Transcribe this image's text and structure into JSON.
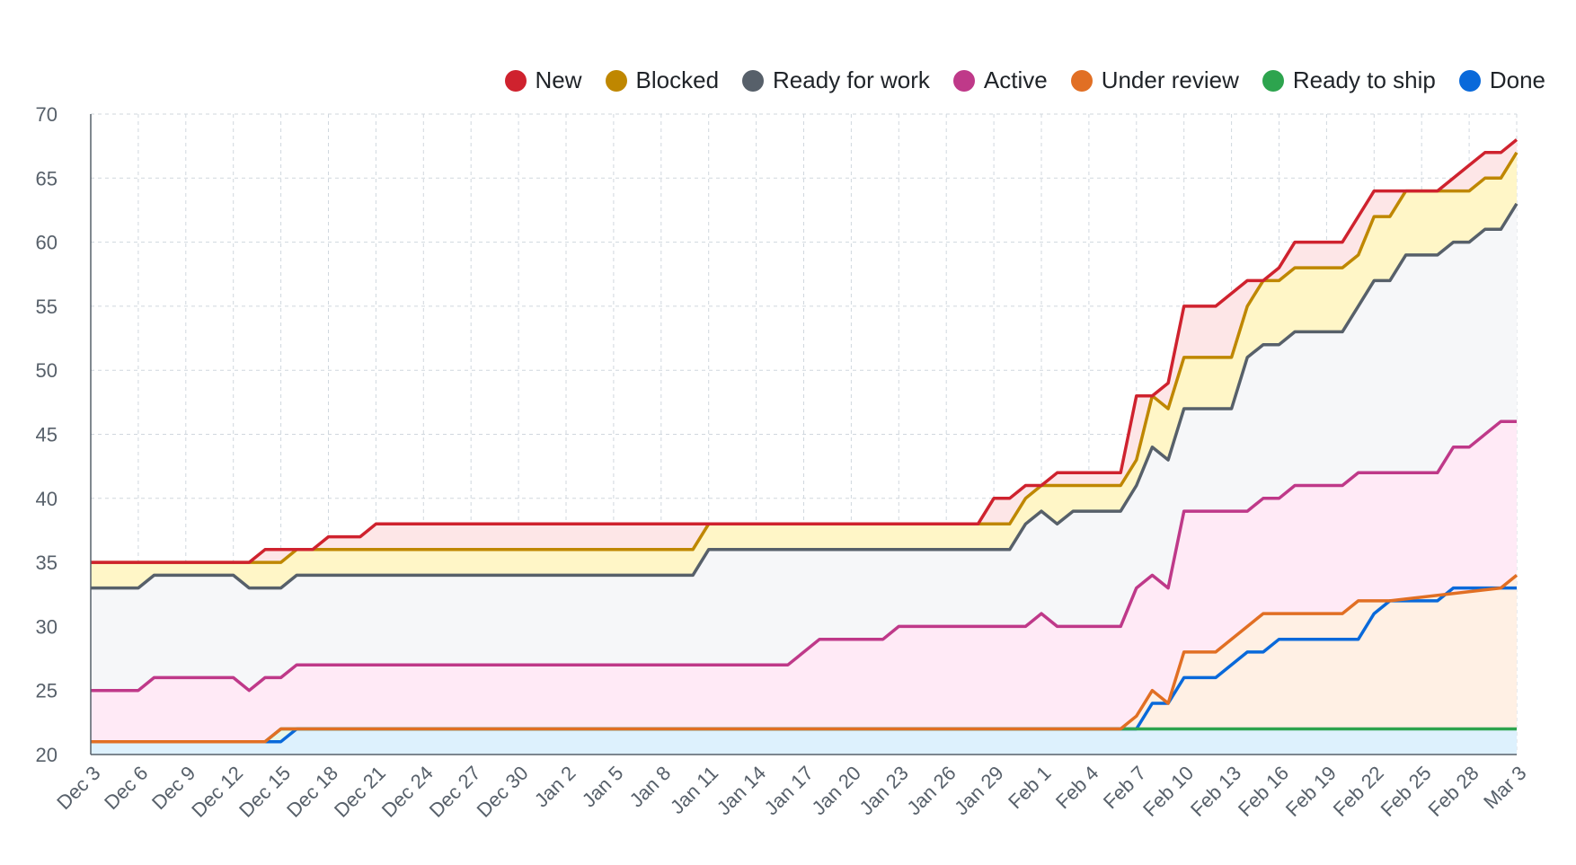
{
  "chart_data": {
    "type": "area",
    "title": "",
    "xlabel": "",
    "ylabel": "",
    "ylim": [
      20,
      70
    ],
    "yticks": [
      20,
      25,
      30,
      35,
      40,
      45,
      50,
      55,
      60,
      65,
      70
    ],
    "grid": true,
    "legend_position": "top-right",
    "x_start": "Dec 3",
    "x_end": "Mar 3",
    "x_tick_labels": [
      "Dec 3",
      "Dec 6",
      "Dec 9",
      "Dec 12",
      "Dec 15",
      "Dec 18",
      "Dec 21",
      "Dec 24",
      "Dec 27",
      "Dec 30",
      "Jan 2",
      "Jan 5",
      "Jan 8",
      "Jan 11",
      "Jan 14",
      "Jan 17",
      "Jan 20",
      "Jan 23",
      "Jan 26",
      "Jan 29",
      "Feb 1",
      "Feb 4",
      "Feb 7",
      "Feb 10",
      "Feb 13",
      "Feb 16",
      "Feb 19",
      "Feb 22",
      "Feb 25",
      "Feb 28",
      "Mar 3"
    ],
    "series": [
      {
        "name": "New",
        "color": "#cf222e",
        "fill": "#fde6e7",
        "points": [
          [
            "Dec 3",
            35
          ],
          [
            "Dec 13",
            35
          ],
          [
            "Dec 14",
            36
          ],
          [
            "Dec 16",
            36
          ],
          [
            "Dec 17",
            36
          ],
          [
            "Dec 18",
            37
          ],
          [
            "Dec 20",
            37
          ],
          [
            "Dec 21",
            38
          ],
          [
            "Jan 28",
            38
          ],
          [
            "Jan 29",
            40
          ],
          [
            "Jan 30",
            40
          ],
          [
            "Jan 31",
            41
          ],
          [
            "Feb 1",
            41
          ],
          [
            "Feb 2",
            42
          ],
          [
            "Feb 6",
            42
          ],
          [
            "Feb 7",
            48
          ],
          [
            "Feb 8",
            48
          ],
          [
            "Feb 9",
            49
          ],
          [
            "Feb 10",
            55
          ],
          [
            "Feb 12",
            55
          ],
          [
            "Feb 14",
            57
          ],
          [
            "Feb 15",
            57
          ],
          [
            "Feb 16",
            58
          ],
          [
            "Feb 17",
            60
          ],
          [
            "Feb 20",
            60
          ],
          [
            "Feb 22",
            64
          ],
          [
            "Feb 24",
            64
          ],
          [
            "Feb 26",
            64
          ],
          [
            "Feb 28",
            66
          ],
          [
            "Mar 1",
            67
          ],
          [
            "Mar 2",
            67
          ],
          [
            "Mar 3",
            68
          ]
        ]
      },
      {
        "name": "Blocked",
        "color": "#bf8700",
        "fill": "#fff6c7",
        "points": [
          [
            "Dec 3",
            35
          ],
          [
            "Dec 15",
            35
          ],
          [
            "Dec 16",
            36
          ],
          [
            "Jan 10",
            36
          ],
          [
            "Jan 11",
            38
          ],
          [
            "Jan 29",
            38
          ],
          [
            "Jan 30",
            38
          ],
          [
            "Jan 31",
            40
          ],
          [
            "Feb 1",
            41
          ],
          [
            "Feb 6",
            41
          ],
          [
            "Feb 7",
            43
          ],
          [
            "Feb 8",
            48
          ],
          [
            "Feb 9",
            47
          ],
          [
            "Feb 10",
            51
          ],
          [
            "Feb 13",
            51
          ],
          [
            "Feb 14",
            55
          ],
          [
            "Feb 15",
            57
          ],
          [
            "Feb 16",
            57
          ],
          [
            "Feb 17",
            58
          ],
          [
            "Feb 20",
            58
          ],
          [
            "Feb 21",
            59
          ],
          [
            "Feb 22",
            62
          ],
          [
            "Feb 23",
            62
          ],
          [
            "Feb 24",
            64
          ],
          [
            "Feb 27",
            64
          ],
          [
            "Feb 28",
            64
          ],
          [
            "Mar 1",
            65
          ],
          [
            "Mar 2",
            65
          ],
          [
            "Mar 3",
            67
          ]
        ]
      },
      {
        "name": "Ready for work",
        "color": "#57606a",
        "fill": "#f6f7f9",
        "points": [
          [
            "Dec 3",
            33
          ],
          [
            "Dec 6",
            33
          ],
          [
            "Dec 7",
            34
          ],
          [
            "Dec 12",
            34
          ],
          [
            "Dec 13",
            33
          ],
          [
            "Dec 15",
            33
          ],
          [
            "Dec 16",
            34
          ],
          [
            "Jan 10",
            34
          ],
          [
            "Jan 11",
            36
          ],
          [
            "Jan 30",
            36
          ],
          [
            "Jan 31",
            38
          ],
          [
            "Feb 1",
            39
          ],
          [
            "Feb 2",
            38
          ],
          [
            "Feb 3",
            39
          ],
          [
            "Feb 6",
            39
          ],
          [
            "Feb 7",
            41
          ],
          [
            "Feb 8",
            44
          ],
          [
            "Feb 9",
            43
          ],
          [
            "Feb 10",
            47
          ],
          [
            "Feb 13",
            47
          ],
          [
            "Feb 14",
            51
          ],
          [
            "Feb 15",
            52
          ],
          [
            "Feb 16",
            52
          ],
          [
            "Feb 17",
            53
          ],
          [
            "Feb 20",
            53
          ],
          [
            "Feb 21",
            55
          ],
          [
            "Feb 22",
            57
          ],
          [
            "Feb 23",
            57
          ],
          [
            "Feb 24",
            59
          ],
          [
            "Feb 26",
            59
          ],
          [
            "Feb 27",
            60
          ],
          [
            "Feb 28",
            60
          ],
          [
            "Mar 1",
            61
          ],
          [
            "Mar 2",
            61
          ],
          [
            "Mar 3",
            63
          ]
        ]
      },
      {
        "name": "Active",
        "color": "#bf3989",
        "fill": "#ffeaf6",
        "points": [
          [
            "Dec 3",
            25
          ],
          [
            "Dec 6",
            25
          ],
          [
            "Dec 7",
            26
          ],
          [
            "Dec 12",
            26
          ],
          [
            "Dec 13",
            25
          ],
          [
            "Dec 14",
            26
          ],
          [
            "Dec 15",
            26
          ],
          [
            "Dec 16",
            27
          ],
          [
            "Jan 16",
            27
          ],
          [
            "Jan 18",
            29
          ],
          [
            "Jan 22",
            29
          ],
          [
            "Jan 23",
            30
          ],
          [
            "Jan 31",
            30
          ],
          [
            "Feb 1",
            31
          ],
          [
            "Feb 2",
            30
          ],
          [
            "Feb 6",
            30
          ],
          [
            "Feb 7",
            33
          ],
          [
            "Feb 8",
            34
          ],
          [
            "Feb 9",
            33
          ],
          [
            "Feb 10",
            39
          ],
          [
            "Feb 14",
            39
          ],
          [
            "Feb 15",
            40
          ],
          [
            "Feb 16",
            40
          ],
          [
            "Feb 17",
            41
          ],
          [
            "Feb 20",
            41
          ],
          [
            "Feb 21",
            42
          ],
          [
            "Feb 26",
            42
          ],
          [
            "Feb 27",
            44
          ],
          [
            "Feb 28",
            44
          ],
          [
            "Mar 2",
            46
          ],
          [
            "Mar 3",
            46
          ]
        ]
      },
      {
        "name": "Under review",
        "color": "#e16f24",
        "fill": "#fff0e4",
        "points": [
          [
            "Dec 3",
            21
          ],
          [
            "Dec 14",
            21
          ],
          [
            "Dec 15",
            22
          ],
          [
            "Feb 5",
            22
          ],
          [
            "Feb 6",
            22
          ],
          [
            "Feb 7",
            23
          ],
          [
            "Feb 8",
            25
          ],
          [
            "Feb 9",
            24
          ],
          [
            "Feb 10",
            28
          ],
          [
            "Feb 12",
            28
          ],
          [
            "Feb 15",
            31
          ],
          [
            "Feb 20",
            31
          ],
          [
            "Feb 21",
            32
          ],
          [
            "Feb 23",
            32
          ],
          [
            "Mar 2",
            33
          ],
          [
            "Mar 3",
            34
          ]
        ]
      },
      {
        "name": "Ready to ship",
        "color": "#2da44e",
        "fill": "#e6f7ea",
        "points": [
          [
            "Dec 3",
            21
          ],
          [
            "Dec 14",
            21
          ],
          [
            "Dec 15",
            22
          ],
          [
            "Mar 3",
            22
          ]
        ]
      },
      {
        "name": "Done",
        "color": "#0969da",
        "fill": "#ddf1fd",
        "points": [
          [
            "Dec 3",
            21
          ],
          [
            "Dec 15",
            21
          ],
          [
            "Dec 16",
            22
          ],
          [
            "Feb 6",
            22
          ],
          [
            "Feb 7",
            22
          ],
          [
            "Feb 8",
            24
          ],
          [
            "Feb 9",
            24
          ],
          [
            "Feb 10",
            26
          ],
          [
            "Feb 12",
            26
          ],
          [
            "Feb 14",
            28
          ],
          [
            "Feb 15",
            28
          ],
          [
            "Feb 16",
            29
          ],
          [
            "Feb 21",
            29
          ],
          [
            "Feb 22",
            31
          ],
          [
            "Feb 23",
            32
          ],
          [
            "Feb 26",
            32
          ],
          [
            "Feb 27",
            33
          ],
          [
            "Mar 3",
            33
          ]
        ]
      }
    ]
  }
}
